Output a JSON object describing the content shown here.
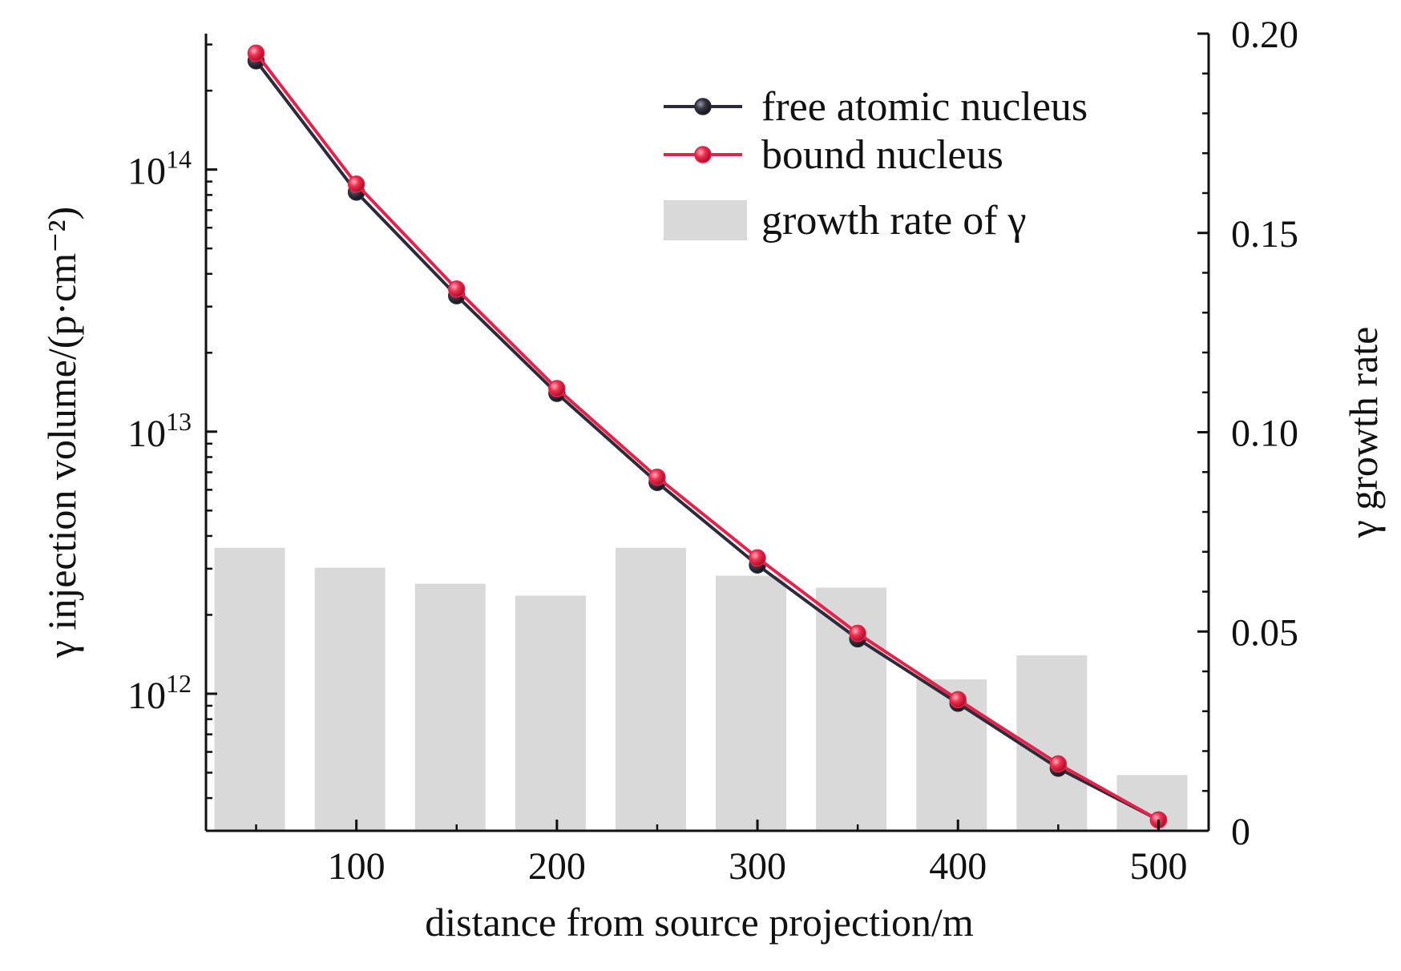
{
  "chart_data": {
    "type": "bar+line",
    "x": [
      50,
      100,
      150,
      200,
      250,
      300,
      350,
      400,
      450,
      500
    ],
    "xlabel": "distance from source projection/m",
    "xlim": [
      25,
      525
    ],
    "xticks": [
      100,
      200,
      300,
      400,
      500
    ],
    "xtick_labels": [
      "100",
      "200",
      "300",
      "400",
      "500"
    ],
    "y_left": {
      "label": "γ injection volume/(p·cm⁻²)",
      "scale": "log",
      "lim": [
        300000000000.0,
        330000000000000.0
      ],
      "ticks": [
        1000000000000.0,
        10000000000000.0,
        100000000000000.0
      ],
      "tick_labels": [
        {
          "base": "10",
          "exp": "12"
        },
        {
          "base": "10",
          "exp": "13"
        },
        {
          "base": "10",
          "exp": "14"
        }
      ]
    },
    "y_right": {
      "label": "γ growth rate",
      "scale": "linear",
      "lim": [
        0,
        0.2
      ],
      "ticks": [
        0,
        0.05,
        0.1,
        0.15,
        0.2
      ],
      "tick_labels": [
        "0",
        "0.05",
        "0.10",
        "0.15",
        "0.20"
      ]
    },
    "series": [
      {
        "name": "free atomic nucleus",
        "kind": "line",
        "axis": "left",
        "color": "#2b2b3a",
        "values": [
          260000000000000.0,
          82000000000000.0,
          33000000000000.0,
          14000000000000.0,
          6400000000000.0,
          3100000000000.0,
          1620000000000.0,
          920000000000.0,
          520000000000.0,
          330000000000.0
        ]
      },
      {
        "name": "bound nucleus",
        "kind": "line",
        "axis": "left",
        "color": "#e8204a",
        "values": [
          278000000000000.0,
          88000000000000.0,
          35000000000000.0,
          14600000000000.0,
          6700000000000.0,
          3300000000000.0,
          1700000000000.0,
          950000000000.0,
          540000000000.0,
          330000000000.0
        ]
      },
      {
        "name": "growth rate of γ",
        "kind": "bar",
        "axis": "right",
        "color": "#d9d9d9",
        "values": [
          0.071,
          0.066,
          0.062,
          0.059,
          0.071,
          0.064,
          0.061,
          0.038,
          0.044,
          0.014
        ]
      }
    ],
    "legend": {
      "position": "top-right",
      "entries": [
        "free atomic nucleus",
        "bound nucleus",
        "growth rate of γ"
      ],
      "gamma_symbol": "γ"
    },
    "grid": false
  }
}
